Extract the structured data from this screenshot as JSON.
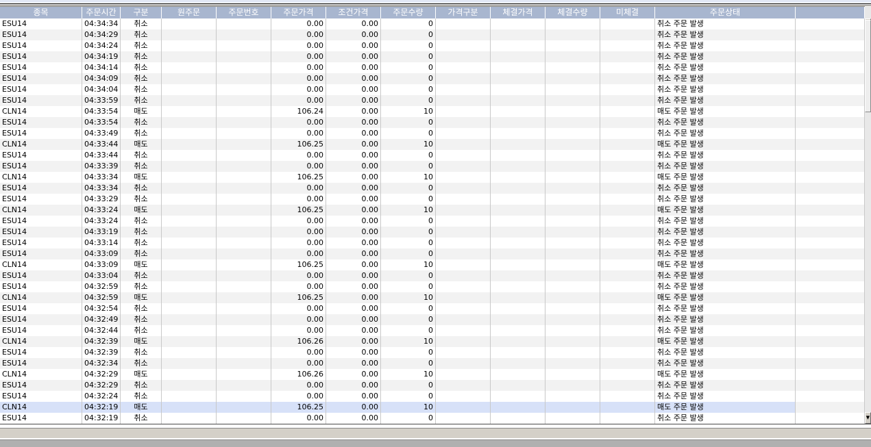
{
  "columns": [
    "종목",
    "주문시간",
    "구분",
    "원주문",
    "주문번호",
    "주문가격",
    "조건가격",
    "주문수량",
    "가격구분",
    "체결가격",
    "체결수량",
    "미체결",
    "주문상태",
    ""
  ],
  "selected_index": 35,
  "rows": [
    [
      "ESU14",
      "04:34:34",
      "취소",
      "0.00",
      "0.00",
      "0",
      "취소 주문 발생"
    ],
    [
      "ESU14",
      "04:34:29",
      "취소",
      "0.00",
      "0.00",
      "0",
      "취소 주문 발생"
    ],
    [
      "ESU14",
      "04:34:24",
      "취소",
      "0.00",
      "0.00",
      "0",
      "취소 주문 발생"
    ],
    [
      "ESU14",
      "04:34:19",
      "취소",
      "0.00",
      "0.00",
      "0",
      "취소 주문 발생"
    ],
    [
      "ESU14",
      "04:34:14",
      "취소",
      "0.00",
      "0.00",
      "0",
      "취소 주문 발생"
    ],
    [
      "ESU14",
      "04:34:09",
      "취소",
      "0.00",
      "0.00",
      "0",
      "취소 주문 발생"
    ],
    [
      "ESU14",
      "04:34:04",
      "취소",
      "0.00",
      "0.00",
      "0",
      "취소 주문 발생"
    ],
    [
      "ESU14",
      "04:33:59",
      "취소",
      "0.00",
      "0.00",
      "0",
      "취소 주문 발생"
    ],
    [
      "CLN14",
      "04:33:54",
      "매도",
      "106.24",
      "0.00",
      "10",
      "매도 주문 발생"
    ],
    [
      "ESU14",
      "04:33:54",
      "취소",
      "0.00",
      "0.00",
      "0",
      "취소 주문 발생"
    ],
    [
      "ESU14",
      "04:33:49",
      "취소",
      "0.00",
      "0.00",
      "0",
      "취소 주문 발생"
    ],
    [
      "CLN14",
      "04:33:44",
      "매도",
      "106.25",
      "0.00",
      "10",
      "매도 주문 발생"
    ],
    [
      "ESU14",
      "04:33:44",
      "취소",
      "0.00",
      "0.00",
      "0",
      "취소 주문 발생"
    ],
    [
      "ESU14",
      "04:33:39",
      "취소",
      "0.00",
      "0.00",
      "0",
      "취소 주문 발생"
    ],
    [
      "CLN14",
      "04:33:34",
      "매도",
      "106.25",
      "0.00",
      "10",
      "매도 주문 발생"
    ],
    [
      "ESU14",
      "04:33:34",
      "취소",
      "0.00",
      "0.00",
      "0",
      "취소 주문 발생"
    ],
    [
      "ESU14",
      "04:33:29",
      "취소",
      "0.00",
      "0.00",
      "0",
      "취소 주문 발생"
    ],
    [
      "CLN14",
      "04:33:24",
      "매도",
      "106.25",
      "0.00",
      "10",
      "매도 주문 발생"
    ],
    [
      "ESU14",
      "04:33:24",
      "취소",
      "0.00",
      "0.00",
      "0",
      "취소 주문 발생"
    ],
    [
      "ESU14",
      "04:33:19",
      "취소",
      "0.00",
      "0.00",
      "0",
      "취소 주문 발생"
    ],
    [
      "ESU14",
      "04:33:14",
      "취소",
      "0.00",
      "0.00",
      "0",
      "취소 주문 발생"
    ],
    [
      "ESU14",
      "04:33:09",
      "취소",
      "0.00",
      "0.00",
      "0",
      "취소 주문 발생"
    ],
    [
      "CLN14",
      "04:33:09",
      "매도",
      "106.25",
      "0.00",
      "10",
      "매도 주문 발생"
    ],
    [
      "ESU14",
      "04:33:04",
      "취소",
      "0.00",
      "0.00",
      "0",
      "취소 주문 발생"
    ],
    [
      "ESU14",
      "04:32:59",
      "취소",
      "0.00",
      "0.00",
      "0",
      "취소 주문 발생"
    ],
    [
      "CLN14",
      "04:32:59",
      "매도",
      "106.25",
      "0.00",
      "10",
      "매도 주문 발생"
    ],
    [
      "ESU14",
      "04:32:54",
      "취소",
      "0.00",
      "0.00",
      "0",
      "취소 주문 발생"
    ],
    [
      "ESU14",
      "04:32:49",
      "취소",
      "0.00",
      "0.00",
      "0",
      "취소 주문 발생"
    ],
    [
      "ESU14",
      "04:32:44",
      "취소",
      "0.00",
      "0.00",
      "0",
      "취소 주문 발생"
    ],
    [
      "CLN14",
      "04:32:39",
      "매도",
      "106.26",
      "0.00",
      "10",
      "매도 주문 발생"
    ],
    [
      "ESU14",
      "04:32:39",
      "취소",
      "0.00",
      "0.00",
      "0",
      "취소 주문 발생"
    ],
    [
      "ESU14",
      "04:32:34",
      "취소",
      "0.00",
      "0.00",
      "0",
      "취소 주문 발생"
    ],
    [
      "CLN14",
      "04:32:29",
      "매도",
      "106.26",
      "0.00",
      "10",
      "매도 주문 발생"
    ],
    [
      "ESU14",
      "04:32:29",
      "취소",
      "0.00",
      "0.00",
      "0",
      "취소 주문 발생"
    ],
    [
      "ESU14",
      "04:32:24",
      "취소",
      "0.00",
      "0.00",
      "0",
      "취소 주문 발생"
    ],
    [
      "CLN14",
      "04:32:19",
      "매도",
      "106.25",
      "0.00",
      "10",
      "매도 주문 발생"
    ],
    [
      "ESU14",
      "04:32:19",
      "취소",
      "0.00",
      "0.00",
      "0",
      "취소 주문 발생"
    ]
  ],
  "scroll_up_icon": "triangle-up",
  "scroll_down_icon": "triangle-down",
  "colors": {
    "header_bg": "#a8b6cf",
    "selected_row": "#d7e1f8",
    "alt_row": "#f2f2f2"
  }
}
